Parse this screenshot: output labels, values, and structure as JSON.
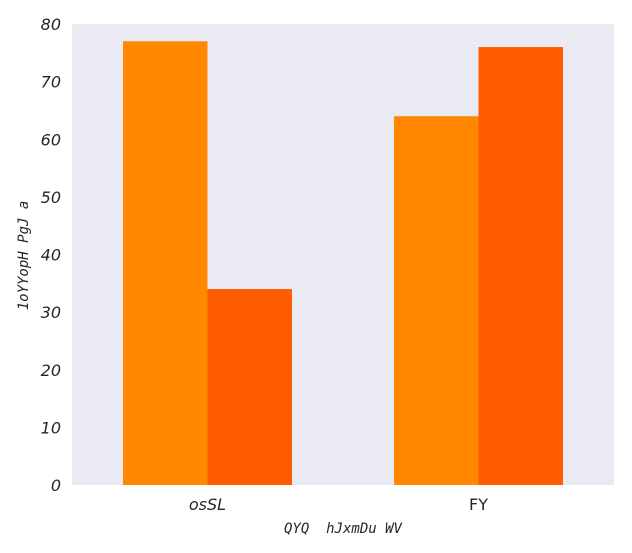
{
  "chart_data": {
    "type": "bar",
    "categories": [
      "osSL",
      "FY"
    ],
    "category_italic": [
      true,
      false
    ],
    "series": [
      {
        "values": [
          77,
          64
        ],
        "color": "#ff8800"
      },
      {
        "values": [
          34,
          76
        ],
        "color": "#ff5b00"
      }
    ],
    "xlabel": "QYQ  hJxmDu WV",
    "ylabel": "1oYYopH PgJ a",
    "ylim": [
      0,
      80
    ],
    "yticks": [
      0,
      10,
      20,
      30,
      40,
      50,
      60,
      70,
      80
    ],
    "grid": false,
    "background_color": "#eaeaf2"
  }
}
